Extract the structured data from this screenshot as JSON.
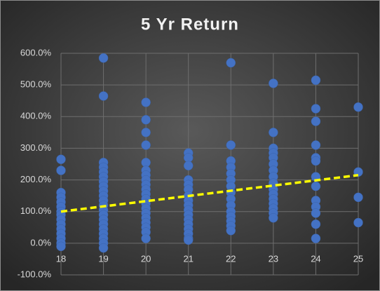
{
  "chart_data": {
    "type": "scatter",
    "title": "5 Yr Return",
    "series": [
      {
        "color": "#4472c4",
        "x": [
          18,
          18,
          18,
          18,
          18,
          18,
          18,
          18,
          18,
          18,
          18,
          18,
          18,
          18,
          18,
          19,
          19,
          19,
          19,
          19,
          19,
          19,
          19,
          19,
          19,
          19,
          19,
          19,
          19,
          19,
          19,
          19,
          19,
          19,
          19,
          19,
          20,
          20,
          20,
          20,
          20,
          20,
          20,
          20,
          20,
          20,
          20,
          20,
          20,
          20,
          20,
          20,
          20,
          20,
          20,
          20,
          21,
          21,
          21,
          21,
          21,
          21,
          21,
          21,
          21,
          21,
          21,
          21,
          21,
          21,
          21,
          21,
          21,
          22,
          22,
          22,
          22,
          22,
          22,
          22,
          22,
          22,
          22,
          22,
          22,
          22,
          22,
          22,
          23,
          23,
          23,
          23,
          23,
          23,
          23,
          23,
          23,
          23,
          23,
          23,
          23,
          23,
          23,
          23,
          24,
          24,
          24,
          24,
          24,
          24,
          24,
          24,
          24,
          24,
          24,
          24,
          24,
          25,
          25,
          25,
          25
        ],
        "values": [
          265,
          230,
          160,
          145,
          130,
          115,
          100,
          90,
          75,
          60,
          45,
          30,
          15,
          0,
          -10,
          585,
          465,
          255,
          240,
          225,
          210,
          195,
          180,
          165,
          150,
          135,
          120,
          105,
          90,
          75,
          60,
          45,
          30,
          15,
          0,
          -15,
          445,
          390,
          350,
          310,
          255,
          230,
          215,
          200,
          185,
          170,
          155,
          140,
          125,
          110,
          95,
          80,
          65,
          50,
          35,
          15,
          285,
          270,
          245,
          200,
          185,
          170,
          150,
          135,
          120,
          105,
          90,
          75,
          60,
          45,
          30,
          15,
          10,
          570,
          310,
          260,
          240,
          220,
          200,
          180,
          160,
          140,
          120,
          100,
          85,
          70,
          55,
          40,
          505,
          350,
          300,
          285,
          270,
          250,
          230,
          210,
          190,
          170,
          155,
          140,
          125,
          110,
          95,
          80,
          515,
          425,
          385,
          310,
          270,
          260,
          210,
          180,
          135,
          115,
          95,
          60,
          15,
          430,
          225,
          145,
          65
        ]
      }
    ],
    "trendline": {
      "x": [
        18,
        25
      ],
      "values": [
        100,
        215
      ],
      "color": "#ffff00"
    },
    "xlim": [
      18,
      25
    ],
    "xticks": [
      18,
      19,
      20,
      21,
      22,
      23,
      24,
      25
    ],
    "ylim": [
      -100,
      600
    ],
    "yticks": [
      {
        "value": -100,
        "label": "-100.0%"
      },
      {
        "value": 0,
        "label": "0.0%"
      },
      {
        "value": 100,
        "label": "100.0%"
      },
      {
        "value": 200,
        "label": "200.0%"
      },
      {
        "value": 300,
        "label": "300.0%"
      },
      {
        "value": 400,
        "label": "400.0%"
      },
      {
        "value": 500,
        "label": "500.0%"
      },
      {
        "value": 600,
        "label": "600.0%"
      }
    ],
    "grid": true
  }
}
